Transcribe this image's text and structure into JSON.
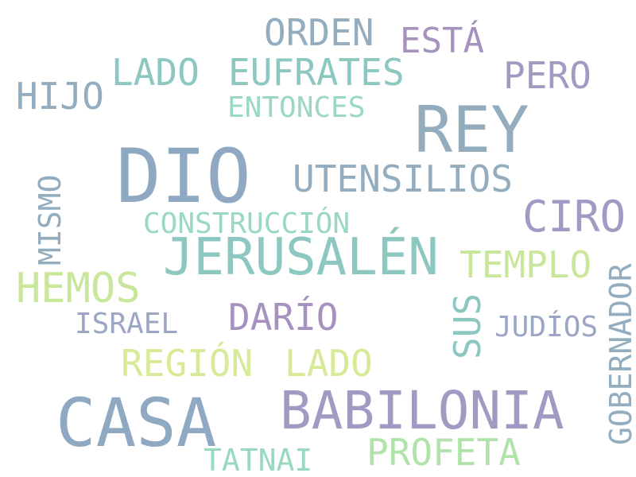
{
  "words": {
    "orden": "ORDEN",
    "esta": "ESTÁ",
    "lado_top": "LADO",
    "eufrates": "EUFRATES",
    "pero": "PERO",
    "hijo": "HIJO",
    "entonces": "ENTONCES",
    "rey": "REY",
    "dio": "DIO",
    "utensilios": "UTENSILIOS",
    "mismo": "MISMO",
    "ciro": "CIRO",
    "construccion": "CONSTRUCCIÓN",
    "jerusalen": "JERUSALÉN",
    "templo": "TEMPLO",
    "gobernador": "GOBERNADOR",
    "hemos": "HEMOS",
    "israel": "ISRAEL",
    "dario": "DARÍO",
    "sus": "SUS",
    "judios": "JUDÍOS",
    "region": "REGIÓN",
    "lado_bottom": "LADO",
    "casa": "CASA",
    "babilonia": "BABILONIA",
    "profeta": "PROFETA",
    "tatnai": "TATNAI"
  },
  "colors": {
    "steel": "#8ea9c1",
    "teal": "#8cc7c0",
    "mint": "#9ad8bf",
    "purple": "#a592bf",
    "lavender": "#a39ac3",
    "lime": "#c9e79a",
    "yellow": "#d6ea98",
    "slate": "#9aa6c4",
    "green": "#b0e3a9"
  }
}
